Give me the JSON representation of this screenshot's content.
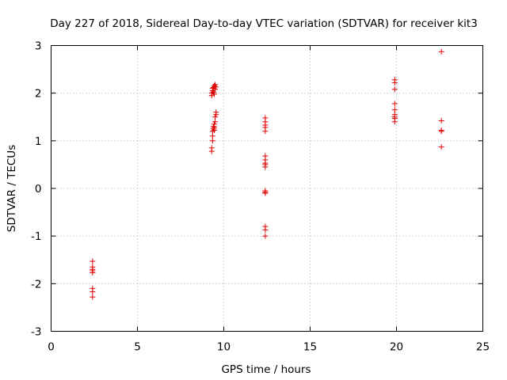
{
  "chart_data": {
    "type": "scatter",
    "title": "Day 227 of 2018, Sidereal Day-to-day VTEC variation (SDTVAR) for receiver kit3",
    "xlabel": "GPS time / hours",
    "ylabel": "SDTVAR / TECUs",
    "xlim": [
      0,
      25
    ],
    "ylim": [
      -3,
      3
    ],
    "xticks": [
      0,
      5,
      10,
      15,
      20,
      25
    ],
    "yticks": [
      -3,
      -2,
      -1,
      0,
      1,
      2,
      3
    ],
    "xtick_labels": [
      "0",
      "5",
      "10",
      "15",
      "20",
      "25"
    ],
    "ytick_labels": [
      "-3",
      "-2",
      "-1",
      "0",
      "1",
      "2",
      "3"
    ],
    "grid": true,
    "marker": "+",
    "color": "#e00000",
    "series": [
      {
        "name": "kit3",
        "points": [
          [
            2.4,
            -1.53
          ],
          [
            2.4,
            -1.65
          ],
          [
            2.4,
            -1.7
          ],
          [
            2.4,
            -1.73
          ],
          [
            2.4,
            -1.77
          ],
          [
            2.4,
            -2.1
          ],
          [
            2.4,
            -2.17
          ],
          [
            2.4,
            -2.28
          ],
          [
            9.3,
            0.78
          ],
          [
            9.3,
            0.85
          ],
          [
            9.35,
            1.0
          ],
          [
            9.35,
            1.1
          ],
          [
            9.35,
            1.2
          ],
          [
            9.4,
            1.25
          ],
          [
            9.4,
            1.3
          ],
          [
            9.45,
            1.22
          ],
          [
            9.45,
            1.35
          ],
          [
            9.5,
            1.4
          ],
          [
            9.5,
            1.5
          ],
          [
            9.55,
            1.55
          ],
          [
            9.55,
            1.6
          ],
          [
            9.45,
            1.28
          ],
          [
            9.3,
            1.95
          ],
          [
            9.3,
            2.0
          ],
          [
            9.35,
            2.05
          ],
          [
            9.35,
            2.1
          ],
          [
            9.4,
            2.12
          ],
          [
            9.4,
            2.02
          ],
          [
            9.45,
            2.15
          ],
          [
            9.5,
            2.18
          ],
          [
            9.5,
            2.08
          ],
          [
            9.55,
            2.13
          ],
          [
            9.45,
            1.98
          ],
          [
            12.4,
            1.48
          ],
          [
            12.4,
            1.4
          ],
          [
            12.4,
            1.33
          ],
          [
            12.4,
            1.28
          ],
          [
            12.4,
            1.2
          ],
          [
            12.4,
            0.68
          ],
          [
            12.4,
            0.6
          ],
          [
            12.4,
            0.53
          ],
          [
            12.4,
            0.5
          ],
          [
            12.4,
            0.45
          ],
          [
            12.4,
            -0.05
          ],
          [
            12.4,
            -0.08
          ],
          [
            12.4,
            -0.1
          ],
          [
            12.4,
            -0.8
          ],
          [
            12.4,
            -0.87
          ],
          [
            12.4,
            -1.0
          ],
          [
            19.9,
            2.28
          ],
          [
            19.9,
            2.22
          ],
          [
            19.9,
            2.08
          ],
          [
            19.9,
            1.78
          ],
          [
            19.9,
            1.65
          ],
          [
            19.9,
            1.55
          ],
          [
            19.9,
            1.5
          ],
          [
            19.9,
            1.47
          ],
          [
            19.9,
            1.4
          ],
          [
            22.6,
            2.87
          ],
          [
            22.6,
            1.42
          ],
          [
            22.6,
            1.22
          ],
          [
            22.6,
            1.2
          ],
          [
            22.6,
            0.87
          ]
        ]
      }
    ]
  }
}
